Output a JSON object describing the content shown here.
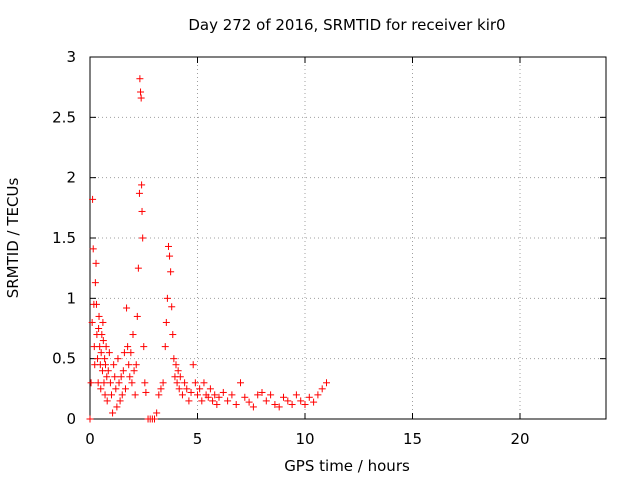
{
  "chart_data": {
    "type": "scatter",
    "title": "Day 272 of 2016, SRMTID for receiver kir0",
    "xlabel": "GPS time / hours",
    "ylabel": "SRMTID / TECUs",
    "xlim": [
      0,
      24
    ],
    "ylim": [
      0,
      3
    ],
    "xticks": [
      0,
      5,
      10,
      15,
      20
    ],
    "yticks": [
      0,
      0.5,
      1,
      1.5,
      2,
      2.5,
      3
    ],
    "xtick_labels": [
      "0",
      "5",
      "10",
      "15",
      "20"
    ],
    "ytick_labels": [
      "0",
      "0.5",
      "1",
      "1.5",
      "2",
      "2.5",
      "3"
    ],
    "grid": true,
    "marker": "+",
    "color": "#ff0000",
    "series": [
      {
        "name": "kir0",
        "x": [
          0.0,
          0.05,
          0.1,
          0.12,
          0.15,
          0.18,
          0.2,
          0.22,
          0.25,
          0.28,
          0.3,
          0.32,
          0.35,
          0.38,
          0.4,
          0.42,
          0.45,
          0.48,
          0.5,
          0.52,
          0.55,
          0.58,
          0.6,
          0.62,
          0.65,
          0.68,
          0.7,
          0.72,
          0.75,
          0.78,
          0.8,
          0.85,
          0.9,
          0.95,
          1.0,
          1.05,
          1.1,
          1.15,
          1.2,
          1.25,
          1.3,
          1.35,
          1.4,
          1.45,
          1.5,
          1.55,
          1.6,
          1.65,
          1.7,
          1.75,
          1.8,
          1.85,
          1.9,
          1.95,
          2.0,
          2.05,
          2.1,
          2.15,
          2.2,
          2.25,
          2.3,
          2.32,
          2.35,
          2.38,
          2.4,
          2.42,
          2.45,
          2.5,
          2.55,
          2.6,
          2.7,
          2.8,
          2.9,
          3.0,
          3.1,
          3.2,
          3.3,
          3.4,
          3.5,
          3.55,
          3.6,
          3.65,
          3.7,
          3.75,
          3.8,
          3.85,
          3.9,
          3.95,
          4.0,
          4.05,
          4.1,
          4.15,
          4.2,
          4.3,
          4.4,
          4.5,
          4.6,
          4.7,
          4.8,
          4.9,
          5.0,
          5.1,
          5.2,
          5.3,
          5.4,
          5.5,
          5.6,
          5.7,
          5.8,
          5.9,
          6.0,
          6.2,
          6.4,
          6.6,
          6.8,
          7.0,
          7.2,
          7.4,
          7.6,
          7.8,
          8.0,
          8.2,
          8.4,
          8.6,
          8.8,
          9.0,
          9.2,
          9.4,
          9.6,
          9.8,
          10.0,
          10.2,
          10.4,
          10.6,
          10.8,
          11.0
        ],
        "y": [
          0.0,
          0.3,
          0.8,
          1.82,
          1.41,
          0.95,
          0.6,
          0.45,
          1.13,
          1.29,
          0.95,
          0.7,
          0.5,
          0.3,
          0.75,
          0.85,
          0.6,
          0.45,
          0.25,
          0.55,
          0.7,
          0.4,
          0.8,
          0.65,
          0.3,
          0.5,
          0.2,
          0.45,
          0.6,
          0.35,
          0.15,
          0.4,
          0.55,
          0.3,
          0.2,
          0.05,
          0.45,
          0.35,
          0.25,
          0.1,
          0.5,
          0.3,
          0.15,
          0.35,
          0.2,
          0.4,
          0.55,
          0.25,
          0.92,
          0.6,
          0.45,
          0.35,
          0.55,
          0.3,
          0.7,
          0.4,
          0.2,
          0.45,
          0.85,
          1.25,
          1.87,
          2.82,
          2.71,
          2.66,
          1.94,
          1.72,
          1.5,
          0.6,
          0.3,
          0.22,
          0.0,
          0.0,
          0.0,
          0.0,
          0.05,
          0.2,
          0.25,
          0.3,
          0.6,
          0.8,
          1.0,
          1.43,
          1.35,
          1.22,
          0.93,
          0.7,
          0.5,
          0.35,
          0.45,
          0.3,
          0.4,
          0.25,
          0.35,
          0.2,
          0.3,
          0.25,
          0.15,
          0.22,
          0.45,
          0.3,
          0.2,
          0.25,
          0.15,
          0.3,
          0.2,
          0.18,
          0.25,
          0.15,
          0.2,
          0.12,
          0.18,
          0.22,
          0.15,
          0.2,
          0.12,
          0.3,
          0.18,
          0.14,
          0.1,
          0.2,
          0.22,
          0.15,
          0.2,
          0.12,
          0.1,
          0.18,
          0.15,
          0.12,
          0.2,
          0.15,
          0.12,
          0.18,
          0.14,
          0.2,
          0.25,
          0.3
        ]
      }
    ]
  }
}
